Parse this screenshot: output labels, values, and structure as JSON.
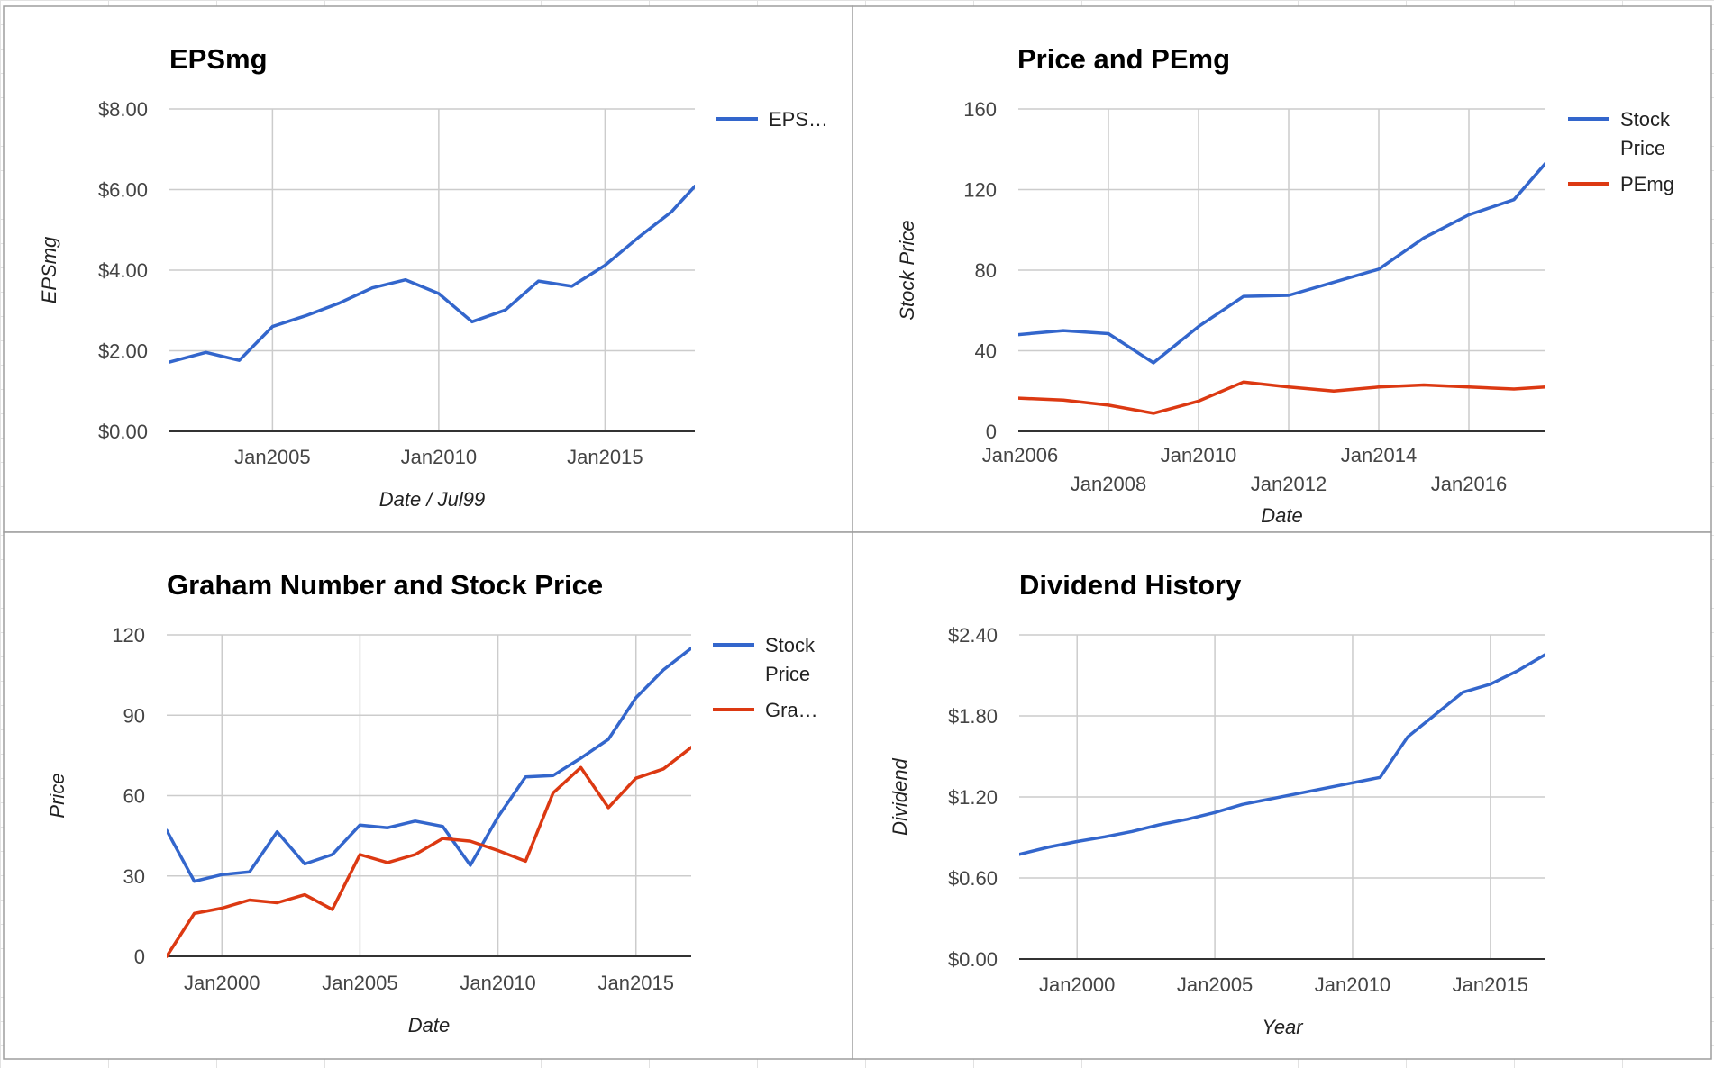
{
  "chart_data": [
    {
      "type": "line",
      "title": "EPSmg",
      "xlabel": "Date / Jul99",
      "ylabel": "EPSmg",
      "ylim": [
        0,
        8
      ],
      "y_ticks": [
        "$0.00",
        "$2.00",
        "$4.00",
        "$6.00",
        "$8.00"
      ],
      "x_ticks": [
        "Jan2005",
        "Jan2010",
        "Jan2015"
      ],
      "legend_position": "right",
      "grid": true,
      "x_type": "year",
      "xlim": [
        2001.9,
        2017.7
      ],
      "x_tick_values": [
        2005,
        2010,
        2015
      ],
      "y_tick_values": [
        0,
        2,
        4,
        6,
        8
      ],
      "series": [
        {
          "name": "EPSmg",
          "legend_label": "EPS…",
          "color": "#3366cc",
          "x": [
            2001.9,
            2003.0,
            2004.0,
            2005.0,
            2006.0,
            2007.0,
            2008.0,
            2009.0,
            2010.0,
            2011.0,
            2012.0,
            2013.0,
            2014.0,
            2015.0,
            2016.0,
            2017.0,
            2017.7
          ],
          "values": [
            1.72,
            1.96,
            1.76,
            2.6,
            2.87,
            3.18,
            3.56,
            3.76,
            3.42,
            2.72,
            3.01,
            3.73,
            3.6,
            4.12,
            4.81,
            5.45,
            6.08
          ]
        }
      ]
    },
    {
      "type": "line",
      "title": "Price and PEmg",
      "xlabel": "Date",
      "ylabel": "Stock Price",
      "ylim": [
        0,
        160
      ],
      "y_ticks": [
        "0",
        "40",
        "80",
        "120",
        "160"
      ],
      "x_ticks": [
        "Jan2006",
        "Jan2008",
        "Jan2010",
        "Jan2012",
        "Jan2014",
        "Jan2016"
      ],
      "legend_position": "right",
      "grid": true,
      "x_type": "year",
      "xlim": [
        2006,
        2017.7
      ],
      "x_tick_values": [
        2006,
        2008,
        2010,
        2012,
        2014,
        2016
      ],
      "y_tick_values": [
        0,
        40,
        80,
        120,
        160
      ],
      "series": [
        {
          "name": "Stock Price",
          "legend_label": [
            "Stock",
            "Price"
          ],
          "color": "#3366cc",
          "x": [
            2006.0,
            2007.0,
            2008.0,
            2009.0,
            2010.0,
            2011.0,
            2012.0,
            2013.0,
            2014.0,
            2015.0,
            2016.0,
            2017.0,
            2017.7
          ],
          "values": [
            48,
            50,
            48.5,
            34,
            52,
            67,
            67.5,
            74,
            80.5,
            96,
            107.5,
            115,
            133
          ]
        },
        {
          "name": "PEmg",
          "legend_label": "PEmg",
          "color": "#dc3912",
          "x": [
            2006.0,
            2007.0,
            2008.0,
            2009.0,
            2010.0,
            2011.0,
            2012.0,
            2013.0,
            2014.0,
            2015.0,
            2016.0,
            2017.0,
            2017.7
          ],
          "values": [
            16.5,
            15.5,
            13,
            9,
            15,
            24.5,
            22,
            20,
            22,
            23,
            22,
            21,
            22
          ]
        }
      ]
    },
    {
      "type": "line",
      "title": "Graham Number and Stock Price",
      "xlabel": "Date",
      "ylabel": "Price",
      "ylim": [
        0,
        120
      ],
      "y_ticks": [
        "0",
        "30",
        "60",
        "90",
        "120"
      ],
      "x_ticks": [
        "Jan2000",
        "Jan2005",
        "Jan2010",
        "Jan2015"
      ],
      "legend_position": "right",
      "grid": true,
      "x_type": "year",
      "xlim": [
        1998,
        2017
      ],
      "x_tick_values": [
        2000,
        2005,
        2010,
        2015
      ],
      "y_tick_values": [
        0,
        30,
        60,
        90,
        120
      ],
      "series": [
        {
          "name": "Stock Price",
          "legend_label": [
            "Stock",
            "Price"
          ],
          "color": "#3366cc",
          "x": [
            1998,
            1999,
            2000,
            2001,
            2002,
            2003,
            2004,
            2005,
            2006,
            2007,
            2008,
            2009,
            2010,
            2011,
            2012,
            2013,
            2014,
            2015,
            2016,
            2017
          ],
          "values": [
            47,
            28,
            30.5,
            31.5,
            46.5,
            34.5,
            38,
            49,
            48,
            50.5,
            48.5,
            34,
            52,
            67,
            67.5,
            74,
            81,
            96.5,
            107,
            115
          ]
        },
        {
          "name": "Graham Number",
          "legend_label": "Gra…",
          "color": "#dc3912",
          "x": [
            1998,
            1999,
            2000,
            2001,
            2002,
            2003,
            2004,
            2005,
            2006,
            2007,
            2008,
            2009,
            2010,
            2011,
            2012,
            2013,
            2014,
            2015,
            2016,
            2017
          ],
          "values": [
            0,
            16,
            18,
            21,
            20,
            23,
            17.5,
            38,
            35,
            38,
            44,
            43,
            39.5,
            35.5,
            61,
            70.5,
            55.5,
            66.5,
            70,
            78
          ]
        }
      ]
    },
    {
      "type": "line",
      "title": "Dividend History",
      "xlabel": "Year",
      "ylabel": "Dividend",
      "ylim": [
        0,
        2.4
      ],
      "y_ticks": [
        "$0.00",
        "$0.60",
        "$1.20",
        "$1.80",
        "$2.40"
      ],
      "x_ticks": [
        "Jan2000",
        "Jan2005",
        "Jan2010",
        "Jan2015"
      ],
      "grid": true,
      "x_type": "year",
      "xlim": [
        1997.9,
        2017
      ],
      "x_tick_values": [
        2000,
        2005,
        2010,
        2015
      ],
      "y_tick_values": [
        0,
        0.6,
        1.2,
        1.8,
        2.4
      ],
      "series": [
        {
          "name": "Dividend",
          "color": "#3366cc",
          "x": [
            1997.9,
            1999,
            2000,
            2001,
            2002,
            2003,
            2004,
            2005,
            2006,
            2007,
            2008,
            2009,
            2010,
            2011,
            2012,
            2013,
            2014,
            2015,
            2016,
            2017
          ],
          "values": [
            0.775,
            0.83,
            0.87,
            0.905,
            0.945,
            0.995,
            1.035,
            1.085,
            1.145,
            1.185,
            1.225,
            1.265,
            1.305,
            1.345,
            1.645,
            1.81,
            1.975,
            2.035,
            2.135,
            2.255
          ]
        }
      ]
    }
  ]
}
